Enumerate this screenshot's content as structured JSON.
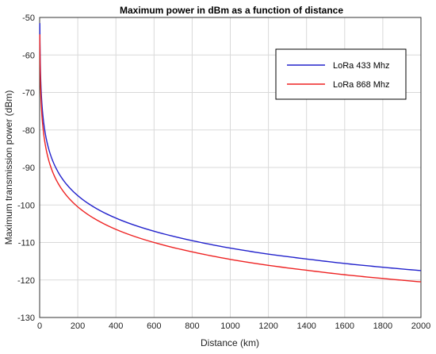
{
  "chart_data": {
    "type": "line",
    "title": "Maximum power in dBm as a function of distance",
    "xlabel": "Distance (km)",
    "ylabel": "Maximum transmission power (dBm)",
    "xlim": [
      0,
      2000
    ],
    "ylim": [
      -130,
      -50
    ],
    "xticks": [
      0,
      200,
      400,
      600,
      800,
      1000,
      1200,
      1400,
      1600,
      1800,
      2000
    ],
    "yticks": [
      -130,
      -120,
      -110,
      -100,
      -90,
      -80,
      -70,
      -60,
      -50
    ],
    "grid": true,
    "legend_position": "top-right",
    "series": [
      {
        "name": "LoRa 433 Mhz",
        "color": "#2222cc",
        "x": [
          1,
          2,
          5,
          10,
          20,
          50,
          100,
          200,
          400,
          600,
          800,
          1000,
          1200,
          1400,
          1600,
          1800,
          2000
        ],
        "y": [
          -51.5,
          -57.5,
          -65.5,
          -71.5,
          -77.5,
          -85.5,
          -91.5,
          -97.5,
          -103.5,
          -107,
          -109.5,
          -111.5,
          -113.1,
          -114.4,
          -115.6,
          -116.6,
          -117.5
        ]
      },
      {
        "name": "LoRa 868 Mhz",
        "color": "#ee2222",
        "x": [
          1,
          2,
          5,
          10,
          20,
          50,
          100,
          200,
          400,
          600,
          800,
          1000,
          1200,
          1400,
          1600,
          1800,
          2000
        ],
        "y": [
          -54.5,
          -60.5,
          -68.5,
          -74.5,
          -80.5,
          -88.5,
          -94.5,
          -100.5,
          -106.5,
          -110,
          -112.5,
          -114.5,
          -116.1,
          -117.4,
          -118.6,
          -119.6,
          -120.5
        ]
      }
    ]
  }
}
